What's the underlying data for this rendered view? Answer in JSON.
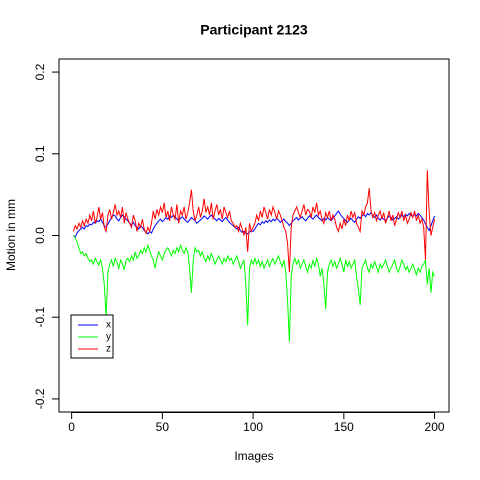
{
  "chart_data": {
    "type": "line",
    "title": "Participant 2123",
    "x_label": "Images",
    "y_label": "Motion in mm",
    "xlim": [
      -6.96,
      207.96
    ],
    "ylim": [
      -0.216,
      0.216
    ],
    "xticks": [
      0,
      50,
      100,
      150,
      200
    ],
    "yticks": [
      -0.2,
      -0.1,
      {
        "value": 0,
        "label": "0.0"
      },
      0.1,
      0.2
    ],
    "legend": "bottomleft",
    "x": [
      1,
      2,
      3,
      4,
      5,
      6,
      7,
      8,
      9,
      10,
      11,
      12,
      13,
      14,
      15,
      16,
      17,
      18,
      19,
      20,
      21,
      22,
      23,
      24,
      25,
      26,
      27,
      28,
      29,
      30,
      31,
      32,
      33,
      34,
      35,
      36,
      37,
      38,
      39,
      40,
      41,
      42,
      43,
      44,
      45,
      46,
      47,
      48,
      49,
      50,
      51,
      52,
      53,
      54,
      55,
      56,
      57,
      58,
      59,
      60,
      61,
      62,
      63,
      64,
      65,
      66,
      67,
      68,
      69,
      70,
      71,
      72,
      73,
      74,
      75,
      76,
      77,
      78,
      79,
      80,
      81,
      82,
      83,
      84,
      85,
      86,
      87,
      88,
      89,
      90,
      91,
      92,
      93,
      94,
      95,
      96,
      97,
      98,
      99,
      100,
      101,
      102,
      103,
      104,
      105,
      106,
      107,
      108,
      109,
      110,
      111,
      112,
      113,
      114,
      115,
      116,
      117,
      118,
      119,
      120,
      121,
      122,
      123,
      124,
      125,
      126,
      127,
      128,
      129,
      130,
      131,
      132,
      133,
      134,
      135,
      136,
      137,
      138,
      139,
      140,
      141,
      142,
      143,
      144,
      145,
      146,
      147,
      148,
      149,
      150,
      151,
      152,
      153,
      154,
      155,
      156,
      157,
      158,
      159,
      160,
      161,
      162,
      163,
      164,
      165,
      166,
      167,
      168,
      169,
      170,
      171,
      172,
      173,
      174,
      175,
      176,
      177,
      178,
      179,
      180,
      181,
      182,
      183,
      184,
      185,
      186,
      187,
      188,
      189,
      190,
      191,
      192,
      193,
      194,
      195,
      196,
      197,
      198,
      199,
      200
    ],
    "series": [
      {
        "name": "x",
        "color": "#0000ff",
        "values": [
          0.0,
          -0.002,
          0.003,
          0.006,
          0.008,
          0.01,
          0.008,
          0.012,
          0.011,
          0.014,
          0.013,
          0.016,
          0.015,
          0.018,
          0.017,
          0.02,
          0.016,
          0.012,
          0.01,
          0.014,
          0.018,
          0.022,
          0.025,
          0.024,
          0.02,
          0.018,
          0.022,
          0.025,
          0.023,
          0.02,
          0.018,
          0.015,
          0.013,
          0.016,
          0.012,
          0.01,
          0.008,
          0.012,
          0.01,
          0.006,
          0.004,
          0.002,
          0.005,
          0.003,
          0.008,
          0.012,
          0.015,
          0.018,
          0.02,
          0.017,
          0.019,
          0.022,
          0.02,
          0.024,
          0.022,
          0.025,
          0.023,
          0.02,
          0.018,
          0.021,
          0.023,
          0.02,
          0.018,
          0.016,
          0.019,
          0.022,
          0.02,
          0.018,
          0.015,
          0.017,
          0.019,
          0.021,
          0.024,
          0.022,
          0.02,
          0.023,
          0.025,
          0.022,
          0.02,
          0.018,
          0.021,
          0.019,
          0.017,
          0.02,
          0.022,
          0.019,
          0.016,
          0.014,
          0.012,
          0.01,
          0.008,
          0.01,
          0.006,
          0.004,
          0.005,
          0.003,
          0.002,
          0.004,
          0.006,
          0.005,
          0.008,
          0.012,
          0.015,
          0.013,
          0.017,
          0.015,
          0.018,
          0.016,
          0.019,
          0.017,
          0.02,
          0.018,
          0.021,
          0.019,
          0.016,
          0.018,
          0.02,
          0.017,
          0.015,
          0.012,
          0.015,
          0.018,
          0.02,
          0.022,
          0.019,
          0.021,
          0.023,
          0.02,
          0.018,
          0.021,
          0.024,
          0.022,
          0.02,
          0.023,
          0.025,
          0.022,
          0.02,
          0.018,
          0.021,
          0.019,
          0.022,
          0.02,
          0.018,
          0.021,
          0.024,
          0.027,
          0.03,
          0.026,
          0.023,
          0.021,
          0.018,
          0.016,
          0.019,
          0.021,
          0.018,
          0.016,
          0.02,
          0.023,
          0.021,
          0.024,
          0.026,
          0.023,
          0.027,
          0.025,
          0.028,
          0.024,
          0.022,
          0.025,
          0.021,
          0.019,
          0.022,
          0.02,
          0.018,
          0.021,
          0.024,
          0.022,
          0.019,
          0.021,
          0.023,
          0.02,
          0.022,
          0.025,
          0.023,
          0.026,
          0.024,
          0.027,
          0.025,
          0.023,
          0.026,
          0.024,
          0.027,
          0.025,
          0.022,
          0.019,
          0.014,
          0.01,
          0.006,
          0.012,
          0.018,
          0.024
        ]
      },
      {
        "name": "y",
        "color": "#00ff00",
        "values": [
          0.0,
          -0.003,
          -0.008,
          -0.015,
          -0.022,
          -0.02,
          -0.025,
          -0.022,
          -0.028,
          -0.032,
          -0.03,
          -0.035,
          -0.028,
          -0.032,
          -0.036,
          -0.03,
          -0.04,
          -0.06,
          -0.1,
          -0.045,
          -0.035,
          -0.03,
          -0.038,
          -0.028,
          -0.033,
          -0.04,
          -0.03,
          -0.035,
          -0.042,
          -0.03,
          -0.028,
          -0.032,
          -0.025,
          -0.03,
          -0.02,
          -0.028,
          -0.025,
          -0.018,
          -0.022,
          -0.015,
          -0.02,
          -0.012,
          -0.018,
          -0.025,
          -0.03,
          -0.04,
          -0.028,
          -0.02,
          -0.025,
          -0.03,
          -0.022,
          -0.018,
          -0.015,
          -0.02,
          -0.025,
          -0.018,
          -0.022,
          -0.015,
          -0.02,
          -0.012,
          -0.018,
          -0.022,
          -0.015,
          -0.02,
          -0.04,
          -0.07,
          -0.03,
          -0.015,
          -0.02,
          -0.018,
          -0.025,
          -0.02,
          -0.028,
          -0.032,
          -0.025,
          -0.03,
          -0.022,
          -0.028,
          -0.035,
          -0.03,
          -0.025,
          -0.03,
          -0.035,
          -0.028,
          -0.032,
          -0.025,
          -0.03,
          -0.028,
          -0.035,
          -0.03,
          -0.025,
          -0.032,
          -0.04,
          -0.035,
          -0.03,
          -0.06,
          -0.11,
          -0.04,
          -0.03,
          -0.035,
          -0.028,
          -0.035,
          -0.03,
          -0.038,
          -0.032,
          -0.04,
          -0.035,
          -0.03,
          -0.038,
          -0.032,
          -0.028,
          -0.035,
          -0.03,
          -0.025,
          -0.032,
          -0.038,
          -0.03,
          -0.045,
          -0.08,
          -0.13,
          -0.05,
          -0.035,
          -0.028,
          -0.035,
          -0.03,
          -0.04,
          -0.035,
          -0.03,
          -0.038,
          -0.045,
          -0.035,
          -0.04,
          -0.03,
          -0.038,
          -0.028,
          -0.035,
          -0.05,
          -0.04,
          -0.06,
          -0.09,
          -0.045,
          -0.035,
          -0.03,
          -0.038,
          -0.032,
          -0.04,
          -0.035,
          -0.028,
          -0.035,
          -0.045,
          -0.03,
          -0.038,
          -0.032,
          -0.04,
          -0.035,
          -0.03,
          -0.05,
          -0.065,
          -0.085,
          -0.04,
          -0.035,
          -0.03,
          -0.04,
          -0.045,
          -0.035,
          -0.04,
          -0.032,
          -0.038,
          -0.045,
          -0.035,
          -0.04,
          -0.035,
          -0.03,
          -0.038,
          -0.045,
          -0.04,
          -0.035,
          -0.03,
          -0.04,
          -0.045,
          -0.038,
          -0.03,
          -0.035,
          -0.042,
          -0.038,
          -0.045,
          -0.04,
          -0.035,
          -0.042,
          -0.048,
          -0.04,
          -0.045,
          -0.038,
          -0.035,
          -0.03,
          -0.06,
          -0.04,
          -0.07,
          -0.045,
          -0.05
        ]
      },
      {
        "name": "z",
        "color": "#ff0000",
        "values": [
          0.005,
          0.012,
          0.008,
          0.015,
          0.01,
          0.018,
          0.012,
          0.02,
          0.015,
          0.025,
          0.018,
          0.03,
          0.015,
          0.022,
          0.035,
          0.02,
          0.028,
          0.01,
          0.005,
          0.025,
          0.032,
          0.02,
          0.028,
          0.038,
          0.025,
          0.03,
          0.022,
          0.035,
          0.015,
          0.028,
          0.02,
          0.015,
          0.01,
          0.025,
          0.018,
          0.005,
          0.015,
          0.01,
          0.02,
          0.008,
          0.003,
          0.01,
          0.005,
          0.015,
          0.03,
          0.02,
          0.032,
          0.025,
          0.035,
          0.028,
          0.04,
          0.022,
          0.03,
          0.018,
          0.035,
          0.025,
          0.02,
          0.038,
          0.015,
          0.03,
          0.025,
          0.035,
          0.02,
          0.028,
          0.04,
          0.056,
          0.03,
          0.018,
          0.025,
          0.035,
          0.022,
          0.03,
          0.045,
          0.028,
          0.035,
          0.025,
          0.04,
          0.02,
          0.03,
          0.038,
          0.025,
          0.032,
          0.02,
          0.035,
          0.028,
          0.022,
          0.03,
          0.018,
          0.015,
          0.01,
          0.012,
          0.005,
          0.015,
          0.008,
          0.0,
          0.01,
          -0.02,
          0.015,
          0.005,
          0.01,
          0.015,
          0.025,
          0.018,
          0.03,
          0.022,
          0.035,
          0.028,
          0.02,
          0.032,
          0.025,
          0.035,
          0.028,
          0.02,
          0.03,
          0.025,
          0.018,
          0.01,
          0.005,
          -0.01,
          -0.045,
          0.01,
          0.025,
          0.03,
          0.035,
          0.028,
          0.022,
          0.03,
          0.038,
          0.025,
          0.032,
          0.03,
          0.022,
          0.035,
          0.028,
          0.04,
          0.025,
          0.03,
          0.02,
          0.015,
          0.028,
          0.022,
          0.03,
          0.018,
          0.025,
          0.02,
          0.01,
          0.005,
          0.015,
          0.008,
          0.02,
          0.012,
          0.025,
          0.018,
          0.03,
          0.022,
          0.028,
          0.015,
          0.01,
          0.005,
          0.03,
          0.025,
          0.035,
          0.04,
          0.058,
          0.03,
          0.022,
          0.028,
          0.018,
          0.025,
          0.03,
          0.02,
          0.028,
          0.015,
          0.022,
          0.03,
          0.018,
          0.025,
          0.012,
          0.02,
          0.028,
          0.022,
          0.03,
          0.018,
          0.025,
          0.015,
          0.02,
          0.028,
          0.022,
          0.03,
          0.018,
          0.025,
          0.015,
          0.02,
          0.01,
          -0.03,
          0.08,
          0.03,
          0.0,
          0.01,
          0.02
        ]
      }
    ]
  }
}
